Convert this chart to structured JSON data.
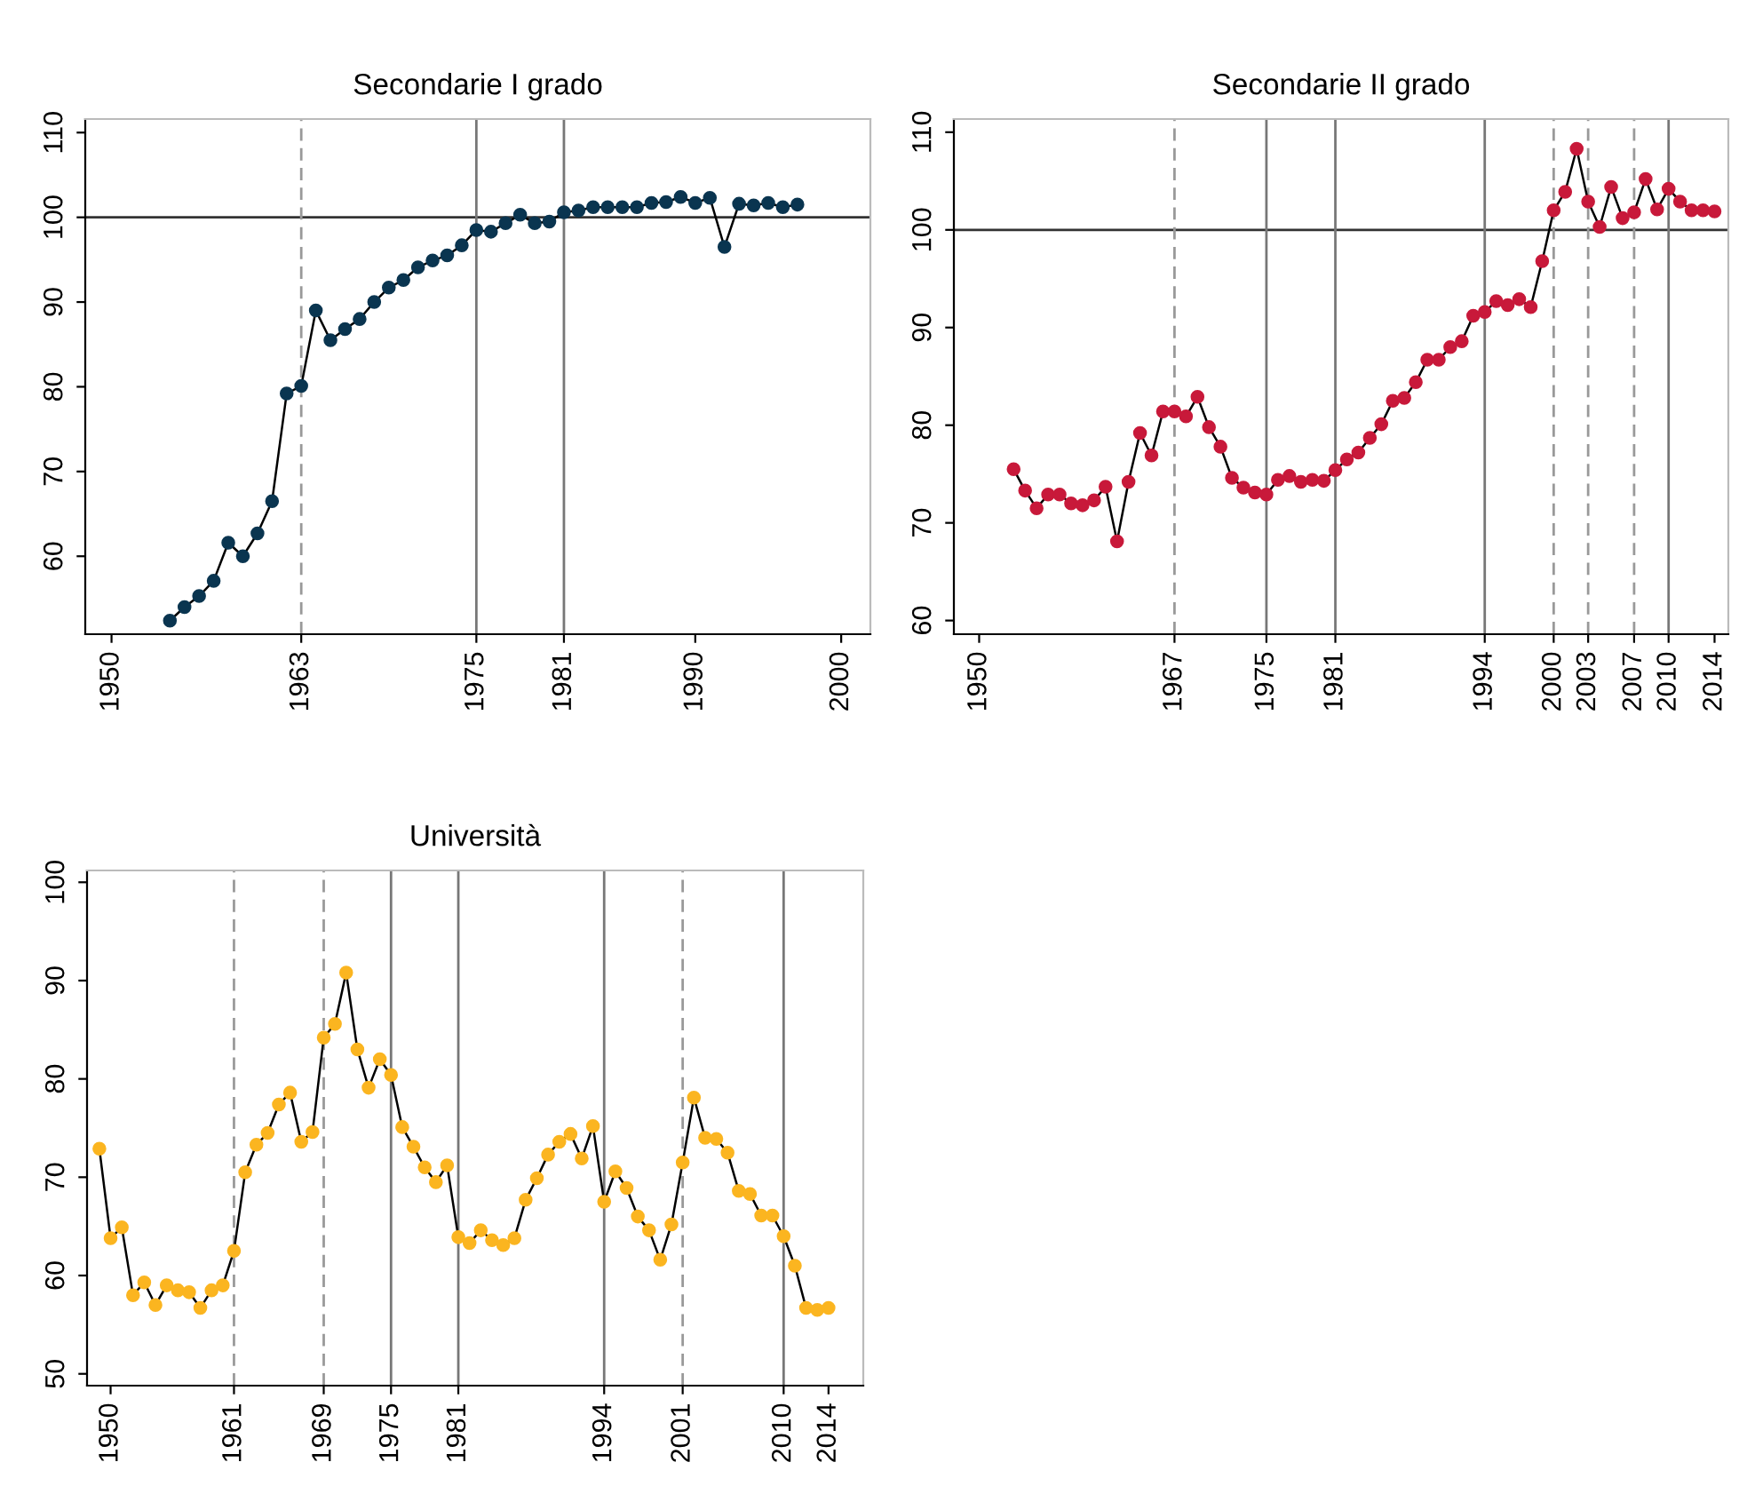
{
  "chart_data": [
    {
      "type": "line",
      "title": "Secondarie I grado",
      "marker": "circle",
      "line_style": "solid",
      "grid": false,
      "x": [
        1954,
        1955,
        1956,
        1957,
        1958,
        1959,
        1960,
        1961,
        1962,
        1963,
        1964,
        1965,
        1966,
        1967,
        1968,
        1969,
        1970,
        1971,
        1972,
        1973,
        1974,
        1975,
        1976,
        1977,
        1978,
        1979,
        1980,
        1981,
        1982,
        1983,
        1984,
        1985,
        1986,
        1987,
        1988,
        1989,
        1990,
        1991,
        1992,
        1993,
        1994,
        1995,
        1996,
        1997
      ],
      "series": [
        {
          "color": "#0a3550",
          "values": [
            52.4,
            54.0,
            55.3,
            57.1,
            61.6,
            60.0,
            62.7,
            66.5,
            79.2,
            80.1,
            89.0,
            85.5,
            86.8,
            88.0,
            90.0,
            91.7,
            92.6,
            94.1,
            94.9,
            95.5,
            96.7,
            98.5,
            98.3,
            99.3,
            100.3,
            99.3,
            99.5,
            100.6,
            100.8,
            101.2,
            101.2,
            101.2,
            101.2,
            101.7,
            101.8,
            102.4,
            101.7,
            102.3,
            96.5,
            101.6,
            101.4,
            101.7,
            101.2,
            101.5
          ]
        }
      ],
      "xlim": [
        1948.2,
        2002.0
      ],
      "xticks": [
        1950,
        1963,
        1975,
        1981,
        1990,
        2000
      ],
      "ylim": [
        50.8,
        111.6
      ],
      "yticks": [
        60,
        70,
        80,
        90,
        100,
        110
      ],
      "ref_lines": [
        {
          "axis": "y",
          "value": 100,
          "color": "#333333",
          "line_style": "solid"
        },
        {
          "axis": "x",
          "value": 1963,
          "color": "#999999",
          "line_style": "dashed"
        },
        {
          "axis": "x",
          "value": 1975,
          "color": "#777777",
          "line_style": "solid"
        },
        {
          "axis": "x",
          "value": 1981,
          "color": "#777777",
          "line_style": "solid"
        }
      ]
    },
    {
      "type": "line",
      "title": "Secondarie II grado",
      "marker": "circle",
      "line_style": "solid",
      "grid": false,
      "x": [
        1953,
        1954,
        1955,
        1956,
        1957,
        1958,
        1959,
        1960,
        1961,
        1962,
        1963,
        1964,
        1965,
        1966,
        1967,
        1968,
        1969,
        1970,
        1971,
        1972,
        1973,
        1974,
        1975,
        1976,
        1977,
        1978,
        1979,
        1980,
        1981,
        1982,
        1983,
        1984,
        1985,
        1986,
        1987,
        1988,
        1989,
        1990,
        1991,
        1992,
        1993,
        1994,
        1995,
        1996,
        1997,
        1998,
        1999,
        2000,
        2001,
        2002,
        2003,
        2004,
        2005,
        2006,
        2007,
        2008,
        2009,
        2010,
        2011,
        2012,
        2013,
        2014
      ],
      "series": [
        {
          "color": "#c8193a",
          "values": [
            75.5,
            73.3,
            71.5,
            72.9,
            72.9,
            72.0,
            71.8,
            72.3,
            73.7,
            68.1,
            74.2,
            79.2,
            76.9,
            81.4,
            81.4,
            80.9,
            82.9,
            79.8,
            77.8,
            74.6,
            73.6,
            73.1,
            72.9,
            74.4,
            74.8,
            74.2,
            74.4,
            74.3,
            75.4,
            76.5,
            77.2,
            78.7,
            80.1,
            82.5,
            82.8,
            84.4,
            86.7,
            86.7,
            88.0,
            88.6,
            91.2,
            91.6,
            92.7,
            92.3,
            92.9,
            92.1,
            96.8,
            102.0,
            103.9,
            108.3,
            102.9,
            100.3,
            104.4,
            101.2,
            101.8,
            105.2,
            102.1,
            104.2,
            102.9,
            102.0,
            102.0,
            101.9
          ]
        }
      ],
      "xlim": [
        1947.8,
        2015.2
      ],
      "xticks": [
        1950,
        1967,
        1975,
        1981,
        1994,
        2000,
        2003,
        2007,
        2010,
        2014
      ],
      "ylim": [
        58.6,
        111.35
      ],
      "yticks": [
        60,
        70,
        80,
        90,
        100,
        110
      ],
      "ref_lines": [
        {
          "axis": "y",
          "value": 100,
          "color": "#333333",
          "line_style": "solid"
        },
        {
          "axis": "x",
          "value": 1967,
          "color": "#999999",
          "line_style": "dashed"
        },
        {
          "axis": "x",
          "value": 1975,
          "color": "#777777",
          "line_style": "solid"
        },
        {
          "axis": "x",
          "value": 1981,
          "color": "#777777",
          "line_style": "solid"
        },
        {
          "axis": "x",
          "value": 1994,
          "color": "#777777",
          "line_style": "solid"
        },
        {
          "axis": "x",
          "value": 2000,
          "color": "#999999",
          "line_style": "dashed"
        },
        {
          "axis": "x",
          "value": 2003,
          "color": "#999999",
          "line_style": "dashed"
        },
        {
          "axis": "x",
          "value": 2007,
          "color": "#999999",
          "line_style": "dashed"
        },
        {
          "axis": "x",
          "value": 2010,
          "color": "#777777",
          "line_style": "solid"
        }
      ]
    },
    {
      "type": "line",
      "title": "Università",
      "marker": "circle",
      "line_style": "solid",
      "grid": false,
      "x": [
        1949,
        1950,
        1951,
        1952,
        1953,
        1954,
        1955,
        1956,
        1957,
        1958,
        1959,
        1960,
        1961,
        1962,
        1963,
        1964,
        1965,
        1966,
        1967,
        1968,
        1969,
        1970,
        1971,
        1972,
        1973,
        1974,
        1975,
        1976,
        1977,
        1978,
        1979,
        1980,
        1981,
        1982,
        1983,
        1984,
        1985,
        1986,
        1987,
        1988,
        1989,
        1990,
        1991,
        1992,
        1993,
        1994,
        1995,
        1996,
        1997,
        1998,
        1999,
        2000,
        2001,
        2002,
        2003,
        2004,
        2005,
        2006,
        2007,
        2008,
        2009,
        2010,
        2011,
        2012,
        2013,
        2014
      ],
      "series": [
        {
          "color": "#fbb520",
          "values": [
            72.9,
            63.8,
            64.9,
            58.0,
            59.3,
            57.0,
            59.0,
            58.5,
            58.3,
            56.7,
            58.5,
            59.0,
            62.5,
            70.5,
            73.3,
            74.5,
            77.4,
            78.6,
            73.6,
            74.6,
            84.2,
            85.6,
            90.8,
            83.0,
            79.1,
            82.0,
            80.4,
            75.1,
            73.1,
            71.0,
            69.5,
            71.2,
            63.9,
            63.3,
            64.6,
            63.6,
            63.1,
            63.8,
            67.7,
            69.9,
            72.3,
            73.6,
            74.4,
            71.9,
            75.2,
            67.5,
            70.6,
            68.9,
            66.0,
            64.6,
            61.6,
            65.2,
            71.5,
            78.1,
            74.0,
            73.9,
            72.5,
            68.6,
            68.3,
            66.1,
            66.1,
            64.0,
            61.0,
            56.7,
            56.5,
            56.7
          ]
        }
      ],
      "xlim": [
        1947.9,
        2017.1
      ],
      "xticks": [
        1950,
        1961,
        1969,
        1975,
        1981,
        1994,
        2001,
        2010,
        2014
      ],
      "ylim": [
        48.8,
        101.2
      ],
      "yticks": [
        50,
        60,
        70,
        80,
        90,
        100
      ],
      "ref_lines": [
        {
          "axis": "x",
          "value": 1961,
          "color": "#999999",
          "line_style": "dashed"
        },
        {
          "axis": "x",
          "value": 1969,
          "color": "#999999",
          "line_style": "dashed"
        },
        {
          "axis": "x",
          "value": 1975,
          "color": "#777777",
          "line_style": "solid"
        },
        {
          "axis": "x",
          "value": 1981,
          "color": "#777777",
          "line_style": "solid"
        },
        {
          "axis": "x",
          "value": 1994,
          "color": "#777777",
          "line_style": "solid"
        },
        {
          "axis": "x",
          "value": 2001,
          "color": "#999999",
          "line_style": "dashed"
        },
        {
          "axis": "x",
          "value": 2010,
          "color": "#777777",
          "line_style": "solid"
        }
      ]
    }
  ]
}
